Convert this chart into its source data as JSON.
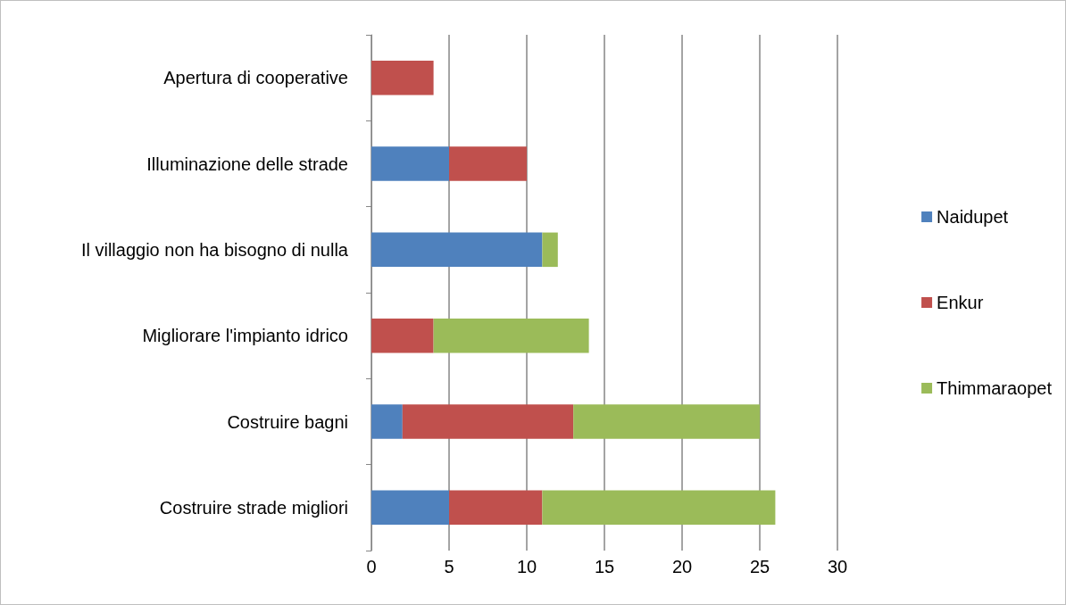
{
  "chart_data": {
    "type": "bar",
    "orientation": "horizontal",
    "stacked": true,
    "categories": [
      "Apertura di cooperative",
      "Illuminazione delle strade",
      "Il villaggio non ha bisogno di nulla",
      "Migliorare l'impianto idrico",
      "Costruire bagni",
      "Costruire strade migliori"
    ],
    "series": [
      {
        "name": "Naidupet",
        "color": "#4f81bd",
        "values": [
          null,
          5,
          11,
          null,
          2,
          5
        ]
      },
      {
        "name": "Enkur",
        "color": "#c0504d",
        "values": [
          4,
          5,
          null,
          4,
          11,
          6
        ]
      },
      {
        "name": "Thimmaraopet",
        "color": "#9bbb59",
        "values": [
          null,
          null,
          1,
          10,
          12,
          15
        ]
      }
    ],
    "xlim": [
      0,
      30
    ],
    "xticks": [
      0,
      5,
      10,
      15,
      20,
      25,
      30
    ],
    "grid": "x",
    "legend": "right"
  }
}
